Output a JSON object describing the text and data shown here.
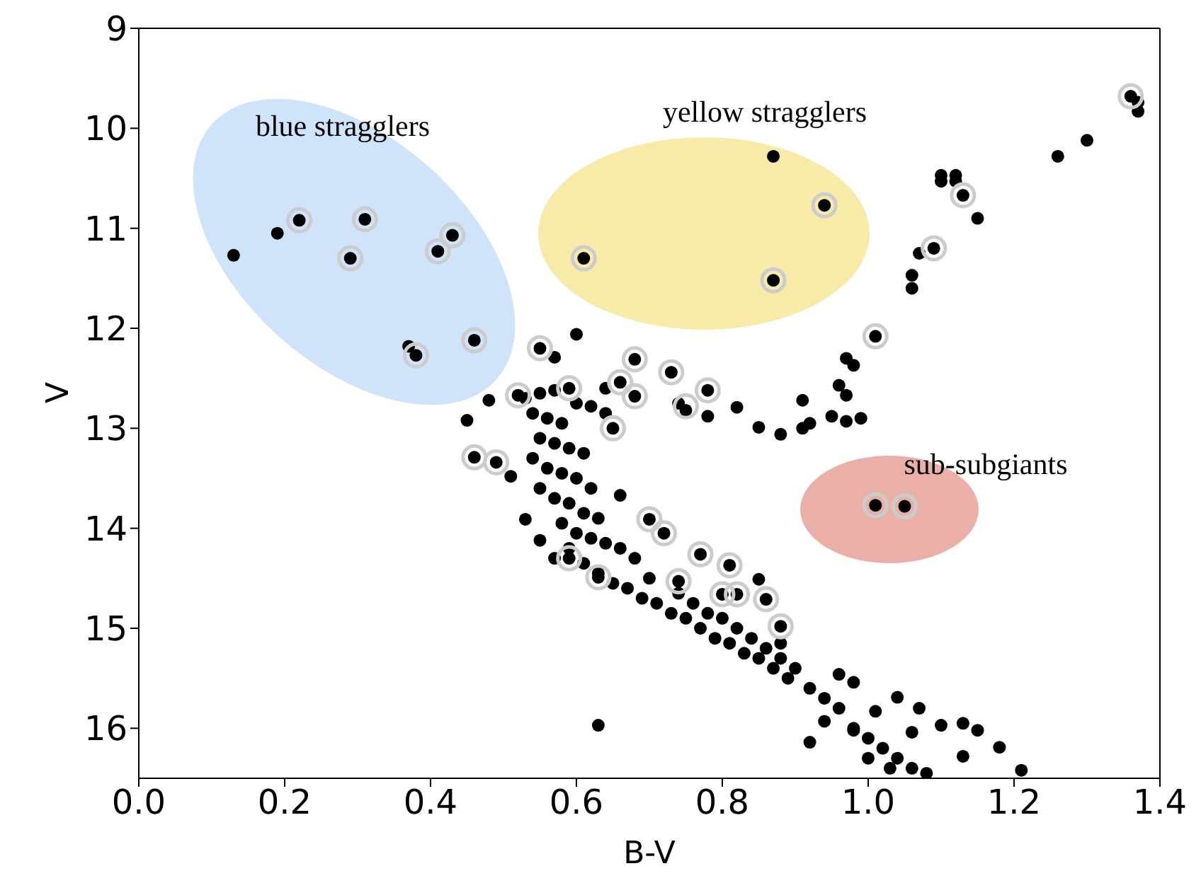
{
  "chart_data": {
    "type": "scatter",
    "xlabel": "B-V",
    "ylabel": "V",
    "xlim": [
      0.0,
      1.4
    ],
    "xticks": [
      {
        "value": 0,
        "label": "0.0"
      },
      {
        "value": 0.2,
        "label": "0.2"
      },
      {
        "value": 0.4,
        "label": "0.4"
      },
      {
        "value": 0.6,
        "label": "0.6"
      },
      {
        "value": 0.8,
        "label": "0.8"
      },
      {
        "value": 1,
        "label": "1.0"
      },
      {
        "value": 1.2,
        "label": "1.2"
      },
      {
        "value": 1.4,
        "label": "1.4"
      }
    ],
    "ylim": [
      16.5,
      9
    ],
    "yticks": [
      9,
      10,
      11,
      12,
      13,
      14,
      15,
      16
    ],
    "marker": "circle",
    "annotations": [
      "blue stragglers",
      "yellow stragglers",
      "sub-subgiants"
    ],
    "series": [
      {
        "color": "#000000",
        "x": [
          0.13,
          0.19,
          0.22,
          0.31,
          0.29,
          0.41,
          0.43,
          0.37,
          0.38,
          0.46,
          0.87,
          0.94,
          0.61,
          0.87,
          1.01,
          1.05,
          1.36,
          1.37,
          1.37,
          1.3,
          1.26,
          1.1,
          1.12,
          1.1,
          1.12,
          1.13,
          1.15,
          1.09,
          1.07,
          1.06,
          1.06,
          1.01,
          0.97,
          0.98,
          0.96,
          0.97,
          0.99,
          0.97,
          0.95,
          0.92,
          0.91,
          0.91,
          0.88,
          0.85,
          0.82,
          0.78,
          0.75,
          0.74,
          0.78,
          0.73,
          0.68,
          0.68,
          0.66,
          0.64,
          0.65,
          0.6,
          0.55,
          0.57,
          0.45,
          0.48,
          0.52,
          0.46,
          0.49,
          0.51,
          0.53,
          0.55,
          0.57,
          0.59,
          0.6,
          0.62,
          0.64,
          0.54,
          0.56,
          0.58,
          0.55,
          0.57,
          0.59,
          0.61,
          0.54,
          0.56,
          0.58,
          0.6,
          0.62,
          0.55,
          0.57,
          0.59,
          0.61,
          0.63,
          0.58,
          0.6,
          0.62,
          0.64,
          0.66,
          0.68,
          0.59,
          0.57,
          0.61,
          0.63,
          0.65,
          0.67,
          0.69,
          0.71,
          0.73,
          0.75,
          0.77,
          0.79,
          0.81,
          0.83,
          0.85,
          0.87,
          0.89,
          0.7,
          0.74,
          0.76,
          0.78,
          0.8,
          0.82,
          0.84,
          0.86,
          0.88,
          0.9,
          0.92,
          0.94,
          0.96,
          0.98,
          1.0,
          1.02,
          1.04,
          1.06,
          1.08,
          1.0,
          1.03,
          0.53,
          0.55,
          0.59,
          0.63,
          0.66,
          0.7,
          0.72,
          0.77,
          0.81,
          0.85,
          0.86,
          0.82,
          0.8,
          0.74,
          0.88,
          0.88,
          0.63,
          1.04,
          1.07,
          1.01,
          1.1,
          1.13,
          1.15,
          1.18,
          1.21,
          1.13,
          0.96,
          0.98,
          0.94,
          0.92,
          0.98,
          1.06
        ],
        "values": [
          11.27,
          11.05,
          10.92,
          10.91,
          11.3,
          11.23,
          11.07,
          12.18,
          12.27,
          12.12,
          10.28,
          10.77,
          11.3,
          11.52,
          13.77,
          13.78,
          9.68,
          9.74,
          9.83,
          10.12,
          10.28,
          10.47,
          10.47,
          10.53,
          10.53,
          10.67,
          10.9,
          11.2,
          11.25,
          11.47,
          11.6,
          12.08,
          12.3,
          12.37,
          12.57,
          12.67,
          12.9,
          12.93,
          12.88,
          12.95,
          13.0,
          12.72,
          13.06,
          12.99,
          12.79,
          12.88,
          12.82,
          12.75,
          12.62,
          12.44,
          12.68,
          12.31,
          12.54,
          12.6,
          13.0,
          12.06,
          12.2,
          12.29,
          12.92,
          12.72,
          12.67,
          13.29,
          13.34,
          13.48,
          12.7,
          12.65,
          12.62,
          12.6,
          12.75,
          12.78,
          12.85,
          12.85,
          12.9,
          12.95,
          13.1,
          13.15,
          13.2,
          13.25,
          13.3,
          13.4,
          13.45,
          13.5,
          13.6,
          13.6,
          13.7,
          13.75,
          13.85,
          13.9,
          13.95,
          14.05,
          14.1,
          14.15,
          14.2,
          14.3,
          14.2,
          14.3,
          14.35,
          14.45,
          14.55,
          14.6,
          14.7,
          14.75,
          14.85,
          14.9,
          15.0,
          15.1,
          15.15,
          15.25,
          15.3,
          15.4,
          15.5,
          14.5,
          14.65,
          14.75,
          14.85,
          14.9,
          15.0,
          15.1,
          15.2,
          15.3,
          15.4,
          15.6,
          15.7,
          15.8,
          16.0,
          16.1,
          16.2,
          16.3,
          16.4,
          16.45,
          16.3,
          16.4,
          13.91,
          14.12,
          14.3,
          14.49,
          13.67,
          13.91,
          14.05,
          14.26,
          14.37,
          14.51,
          14.71,
          14.66,
          14.66,
          14.53,
          14.98,
          15.15,
          15.97,
          15.69,
          15.8,
          15.83,
          15.97,
          15.95,
          16.02,
          16.19,
          16.42,
          16.28,
          15.46,
          15.54,
          15.93,
          16.14,
          16.02,
          16.04
        ]
      },
      {
        "color": "#cccccc",
        "x": [
          0.22,
          0.31,
          0.29,
          0.41,
          0.43,
          0.38,
          0.46,
          0.94,
          0.61,
          0.87,
          1.01,
          1.05,
          1.36,
          1.13,
          1.09,
          1.01,
          0.78,
          0.75,
          0.73,
          0.68,
          0.68,
          0.66,
          0.65,
          0.55,
          0.52,
          0.46,
          0.49,
          0.59,
          0.63,
          0.7,
          0.72,
          0.77,
          0.81,
          0.86,
          0.82,
          0.8,
          0.74,
          0.88,
          0.59
        ],
        "values": [
          10.92,
          10.91,
          11.3,
          11.23,
          11.07,
          12.27,
          12.12,
          10.77,
          11.3,
          11.52,
          13.77,
          13.78,
          9.68,
          10.67,
          11.2,
          12.08,
          12.62,
          12.78,
          12.44,
          12.68,
          12.31,
          12.54,
          13.0,
          12.2,
          12.67,
          13.29,
          13.34,
          14.3,
          14.49,
          13.91,
          14.05,
          14.26,
          14.37,
          14.71,
          14.66,
          14.66,
          14.53,
          14.98,
          12.6
        ]
      }
    ]
  }
}
